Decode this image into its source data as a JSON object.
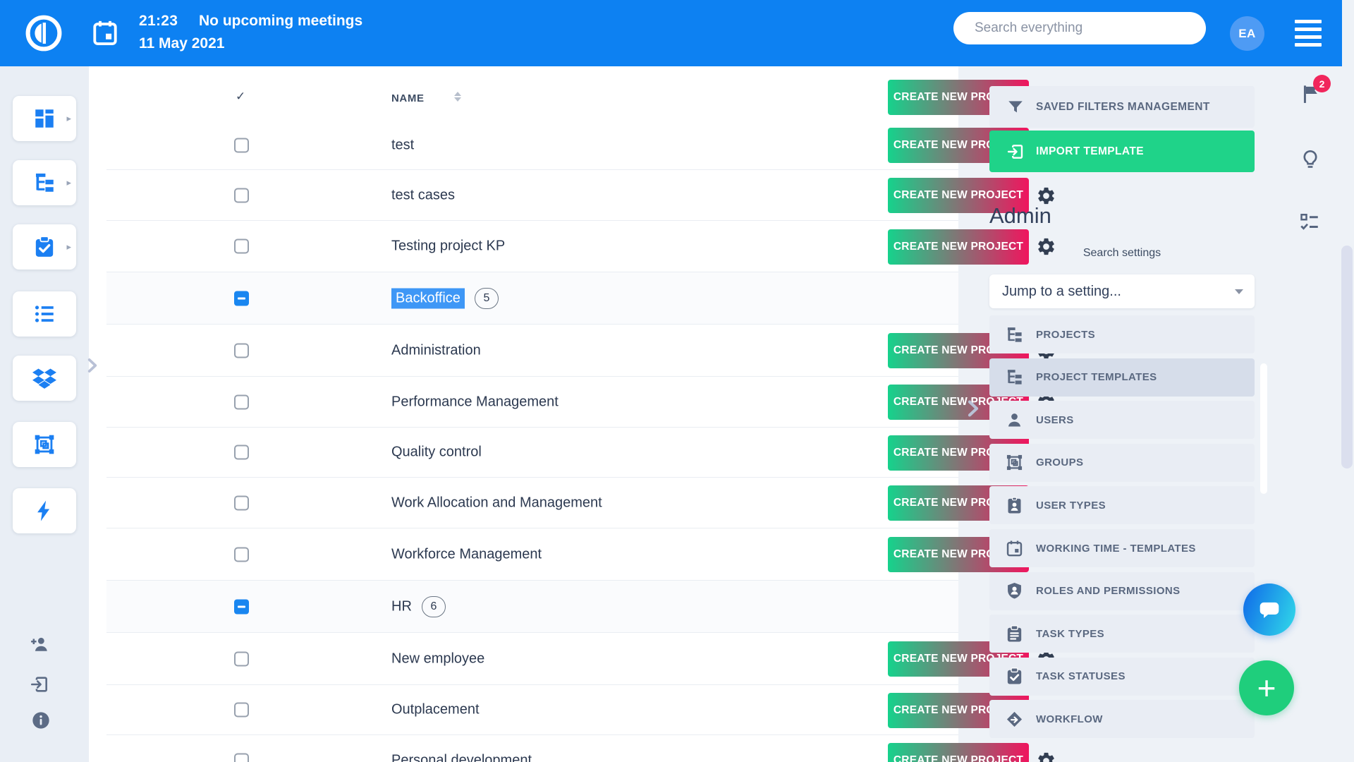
{
  "topbar": {
    "time": "21:23",
    "meeting_status": "No upcoming meetings",
    "date": "11 May 2021",
    "search_placeholder": "Search everything",
    "avatar_initials": "EA",
    "icons": [
      "app-logo-icon",
      "calendar-icon",
      "hamburger-menu-icon"
    ]
  },
  "sidebar": {
    "items": [
      {
        "icon": "dashboard-icon",
        "has_submenu": true
      },
      {
        "icon": "project-tree-icon",
        "has_submenu": true
      },
      {
        "icon": "tasks-clipboard-icon",
        "has_submenu": true
      },
      {
        "icon": "list-icon",
        "has_submenu": false
      },
      {
        "icon": "dropbox-icon",
        "has_submenu": false
      },
      {
        "icon": "artboard-icon",
        "has_submenu": false
      },
      {
        "icon": "lightning-icon",
        "has_submenu": false
      }
    ],
    "bottom_icons": [
      "add-user-icon",
      "exit-icon",
      "info-icon"
    ]
  },
  "table": {
    "header": {
      "check_glyph": "✓",
      "name_label": "NAME"
    },
    "create_button_label": "CREATE NEW PROJECT",
    "rows": [
      {
        "name": "test",
        "type": "project"
      },
      {
        "name": "test cases",
        "type": "project"
      },
      {
        "name": "Testing project KP",
        "type": "project"
      },
      {
        "name": "Backoffice",
        "type": "group",
        "count": "5",
        "selected": true
      },
      {
        "name": "Administration",
        "type": "project"
      },
      {
        "name": "Performance Management",
        "type": "project"
      },
      {
        "name": "Quality control",
        "type": "project"
      },
      {
        "name": "Work Allocation and Management",
        "type": "project"
      },
      {
        "name": "Workforce Management",
        "type": "project"
      },
      {
        "name": "HR",
        "type": "group",
        "count": "6"
      },
      {
        "name": "New employee",
        "type": "project"
      },
      {
        "name": "Outplacement",
        "type": "project"
      },
      {
        "name": "Personal development",
        "type": "project",
        "partial": true
      }
    ]
  },
  "right_panel": {
    "saved_filters_label": "SAVED FILTERS MANAGEMENT",
    "import_label": "IMPORT TEMPLATE",
    "admin_title": "Admin",
    "search_settings_label": "Search settings",
    "jump_placeholder": "Jump to a setting...",
    "settings": [
      {
        "icon": "project-tree-icon",
        "label": "PROJECTS",
        "selected": false
      },
      {
        "icon": "project-tree-icon",
        "label": "PROJECT TEMPLATES",
        "selected": true
      },
      {
        "icon": "user-icon",
        "label": "USERS",
        "selected": false
      },
      {
        "icon": "groups-frame-icon",
        "label": "GROUPS",
        "selected": false
      },
      {
        "icon": "user-badge-icon",
        "label": "USER TYPES",
        "selected": false
      },
      {
        "icon": "calendar-icon",
        "label": "WORKING TIME - TEMPLATES",
        "selected": false
      },
      {
        "icon": "shield-user-icon",
        "label": "ROLES AND PERMISSIONS",
        "selected": false
      },
      {
        "icon": "clipboard-lines-icon",
        "label": "TASK TYPES",
        "selected": false
      },
      {
        "icon": "clipboard-check-icon",
        "label": "TASK STATUSES",
        "selected": false
      },
      {
        "icon": "workflow-icon",
        "label": "WORKFLOW",
        "selected": false
      }
    ]
  },
  "right_strip": {
    "icons": [
      "flag-icon",
      "lightbulb-icon",
      "checklist-icon"
    ],
    "flag_badge_count": "2"
  },
  "fabs": {
    "chat_icon": "chat-bubble-icon",
    "plus_label": "+"
  },
  "colors": {
    "topbar_blue": "#0d81f2",
    "accent_green": "#1fd389",
    "button_gradient_start": "#16d28c",
    "button_gradient_end": "#f0155e",
    "selection_blue": "#3e97f6",
    "badge_red": "#f1265c",
    "panel_gray": "#e9edf4",
    "panel_selected_gray": "#d6ddea"
  }
}
